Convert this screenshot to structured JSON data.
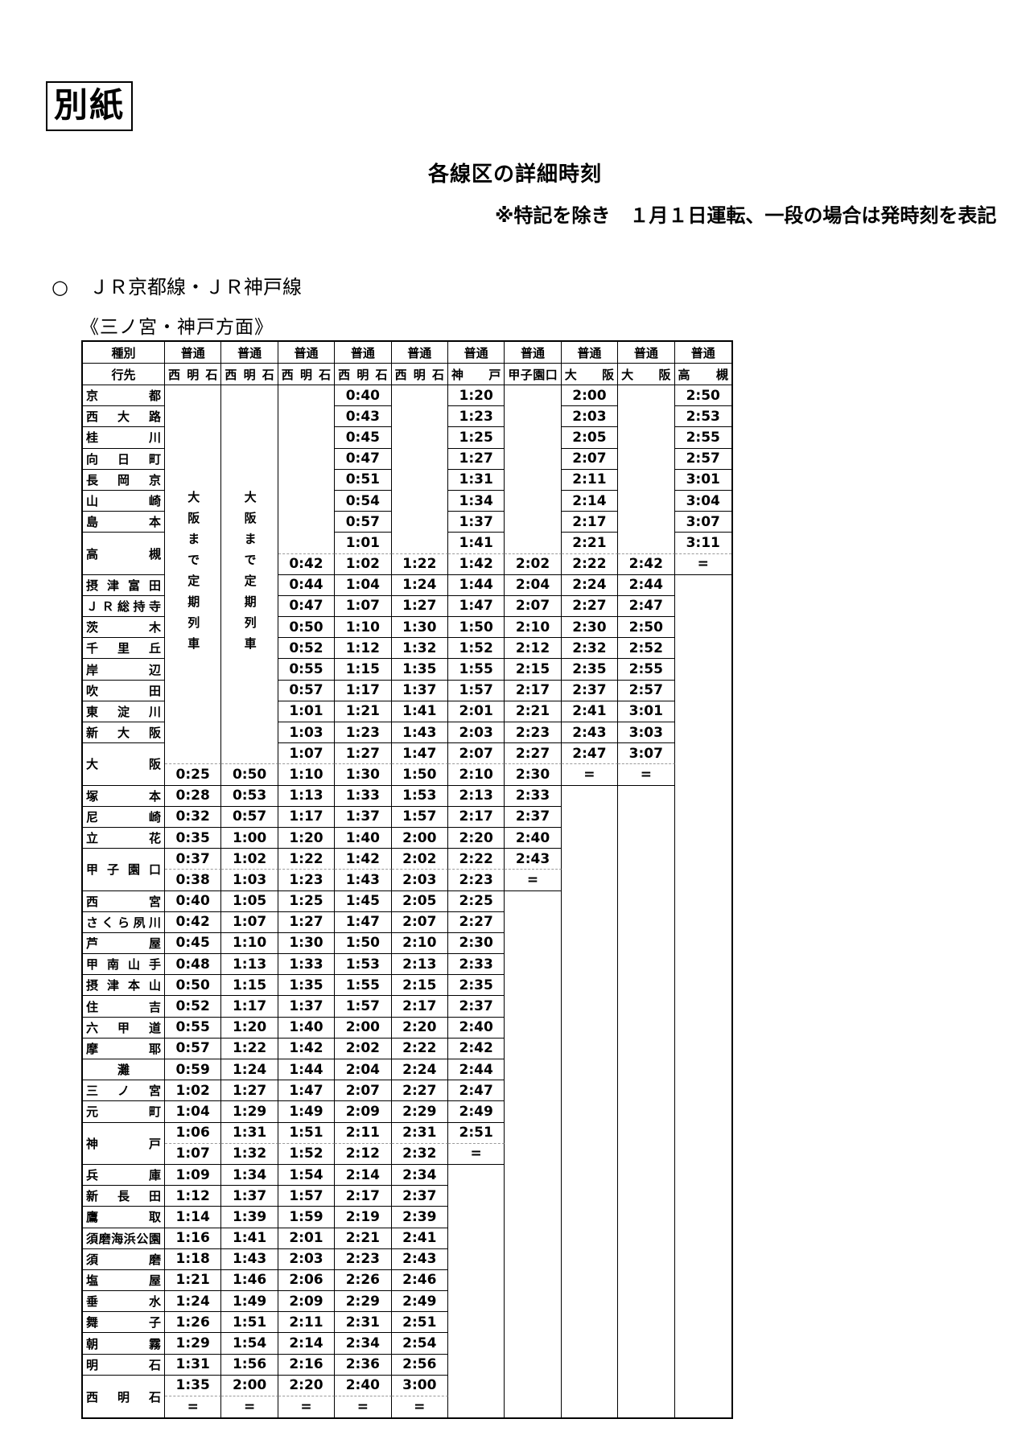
{
  "page": {
    "tag_label": "別紙",
    "title": "各線区の詳細時刻",
    "note": "※特記を除き　１月１日運転、一段の場合は発時刻を表記",
    "section_marker": "○",
    "section_heading": "ＪＲ京都線・ＪＲ神戸線",
    "direction_heading": "《三ノ宮・神戸方面》"
  },
  "timetable": {
    "type_header": "種別",
    "dest_header": "行先",
    "note_vertical": "大阪まで定期列車",
    "stations": [
      {
        "name": "京都",
        "subs": 1
      },
      {
        "name": "西大路",
        "subs": 1
      },
      {
        "name": "桂川",
        "subs": 1
      },
      {
        "name": "向日町",
        "subs": 1
      },
      {
        "name": "長岡京",
        "subs": 1
      },
      {
        "name": "山崎",
        "subs": 1
      },
      {
        "name": "島本",
        "subs": 1
      },
      {
        "name": "高槻",
        "subs": 2
      },
      {
        "name": "摂津富田",
        "subs": 1
      },
      {
        "name": "ＪＲ総持寺",
        "subs": 1
      },
      {
        "name": "茨木",
        "subs": 1
      },
      {
        "name": "千里丘",
        "subs": 1
      },
      {
        "name": "岸辺",
        "subs": 1
      },
      {
        "name": "吹田",
        "subs": 1
      },
      {
        "name": "東淀川",
        "subs": 1
      },
      {
        "name": "新大阪",
        "subs": 1
      },
      {
        "name": "大阪",
        "subs": 2
      },
      {
        "name": "塚本",
        "subs": 1
      },
      {
        "name": "尼崎",
        "subs": 1
      },
      {
        "name": "立花",
        "subs": 1
      },
      {
        "name": "甲子園口",
        "subs": 2
      },
      {
        "name": "西宮",
        "subs": 1
      },
      {
        "name": "さくら夙川",
        "subs": 1
      },
      {
        "name": "芦屋",
        "subs": 1
      },
      {
        "name": "甲南山手",
        "subs": 1
      },
      {
        "name": "摂津本山",
        "subs": 1
      },
      {
        "name": "住吉",
        "subs": 1
      },
      {
        "name": "六甲道",
        "subs": 1
      },
      {
        "name": "摩耶",
        "subs": 1
      },
      {
        "name": "灘",
        "subs": 1
      },
      {
        "name": "三ノ宮",
        "subs": 1
      },
      {
        "name": "元町",
        "subs": 1
      },
      {
        "name": "神戸",
        "subs": 2
      },
      {
        "name": "兵庫",
        "subs": 1
      },
      {
        "name": "新長田",
        "subs": 1
      },
      {
        "name": "鷹取",
        "subs": 1
      },
      {
        "name": "須磨海浜公園",
        "subs": 1
      },
      {
        "name": "須磨",
        "subs": 1
      },
      {
        "name": "塩屋",
        "subs": 1
      },
      {
        "name": "垂水",
        "subs": 1
      },
      {
        "name": "舞子",
        "subs": 1
      },
      {
        "name": "朝霧",
        "subs": 1
      },
      {
        "name": "明石",
        "subs": 1
      },
      {
        "name": "西明石",
        "subs": 2
      }
    ],
    "columns": [
      {
        "type": "普通",
        "dest": "西明石",
        "note": true,
        "times": [
          null,
          null,
          null,
          null,
          null,
          null,
          null,
          null,
          null,
          null,
          null,
          null,
          null,
          null,
          null,
          null,
          null,
          null,
          "0:25",
          "0:28",
          "0:32",
          "0:35",
          "0:37",
          "0:38",
          "0:40",
          "0:42",
          "0:45",
          "0:48",
          "0:50",
          "0:52",
          "0:55",
          "0:57",
          "0:59",
          "1:02",
          "1:04",
          "1:06",
          "1:07",
          "1:09",
          "1:12",
          "1:14",
          "1:16",
          "1:18",
          "1:21",
          "1:24",
          "1:26",
          "1:29",
          "1:31",
          "1:35",
          "="
        ]
      },
      {
        "type": "普通",
        "dest": "西明石",
        "note": true,
        "times": [
          null,
          null,
          null,
          null,
          null,
          null,
          null,
          null,
          null,
          null,
          null,
          null,
          null,
          null,
          null,
          null,
          null,
          null,
          "0:50",
          "0:53",
          "0:57",
          "1:00",
          "1:02",
          "1:03",
          "1:05",
          "1:07",
          "1:10",
          "1:13",
          "1:15",
          "1:17",
          "1:20",
          "1:22",
          "1:24",
          "1:27",
          "1:29",
          "1:31",
          "1:32",
          "1:34",
          "1:37",
          "1:39",
          "1:41",
          "1:43",
          "1:46",
          "1:49",
          "1:51",
          "1:54",
          "1:56",
          "2:00",
          "="
        ]
      },
      {
        "type": "普通",
        "dest": "西明石",
        "note": false,
        "times": [
          null,
          null,
          null,
          null,
          null,
          null,
          null,
          null,
          "0:42",
          "0:44",
          "0:47",
          "0:50",
          "0:52",
          "0:55",
          "0:57",
          "1:01",
          "1:03",
          "1:07",
          "1:10",
          "1:13",
          "1:17",
          "1:20",
          "1:22",
          "1:23",
          "1:25",
          "1:27",
          "1:30",
          "1:33",
          "1:35",
          "1:37",
          "1:40",
          "1:42",
          "1:44",
          "1:47",
          "1:49",
          "1:51",
          "1:52",
          "1:54",
          "1:57",
          "1:59",
          "2:01",
          "2:03",
          "2:06",
          "2:09",
          "2:11",
          "2:14",
          "2:16",
          "2:20",
          "="
        ]
      },
      {
        "type": "普通",
        "dest": "西明石",
        "note": false,
        "times": [
          "0:40",
          "0:43",
          "0:45",
          "0:47",
          "0:51",
          "0:54",
          "0:57",
          "1:01",
          "1:02",
          "1:04",
          "1:07",
          "1:10",
          "1:12",
          "1:15",
          "1:17",
          "1:21",
          "1:23",
          "1:27",
          "1:30",
          "1:33",
          "1:37",
          "1:40",
          "1:42",
          "1:43",
          "1:45",
          "1:47",
          "1:50",
          "1:53",
          "1:55",
          "1:57",
          "2:00",
          "2:02",
          "2:04",
          "2:07",
          "2:09",
          "2:11",
          "2:12",
          "2:14",
          "2:17",
          "2:19",
          "2:21",
          "2:23",
          "2:26",
          "2:29",
          "2:31",
          "2:34",
          "2:36",
          "2:40",
          "="
        ]
      },
      {
        "type": "普通",
        "dest": "西明石",
        "note": false,
        "times": [
          null,
          null,
          null,
          null,
          null,
          null,
          null,
          null,
          "1:22",
          "1:24",
          "1:27",
          "1:30",
          "1:32",
          "1:35",
          "1:37",
          "1:41",
          "1:43",
          "1:47",
          "1:50",
          "1:53",
          "1:57",
          "2:00",
          "2:02",
          "2:03",
          "2:05",
          "2:07",
          "2:10",
          "2:13",
          "2:15",
          "2:17",
          "2:20",
          "2:22",
          "2:24",
          "2:27",
          "2:29",
          "2:31",
          "2:32",
          "2:34",
          "2:37",
          "2:39",
          "2:41",
          "2:43",
          "2:46",
          "2:49",
          "2:51",
          "2:54",
          "2:56",
          "3:00",
          "="
        ]
      },
      {
        "type": "普通",
        "dest": "神戸",
        "note": false,
        "times": [
          "1:20",
          "1:23",
          "1:25",
          "1:27",
          "1:31",
          "1:34",
          "1:37",
          "1:41",
          "1:42",
          "1:44",
          "1:47",
          "1:50",
          "1:52",
          "1:55",
          "1:57",
          "2:01",
          "2:03",
          "2:07",
          "2:10",
          "2:13",
          "2:17",
          "2:20",
          "2:22",
          "2:23",
          "2:25",
          "2:27",
          "2:30",
          "2:33",
          "2:35",
          "2:37",
          "2:40",
          "2:42",
          "2:44",
          "2:47",
          "2:49",
          "2:51",
          "=",
          null,
          null,
          null,
          null,
          null,
          null,
          null,
          null,
          null,
          null,
          null,
          null
        ]
      },
      {
        "type": "普通",
        "dest": "甲子園口",
        "note": false,
        "times": [
          null,
          null,
          null,
          null,
          null,
          null,
          null,
          null,
          "2:02",
          "2:04",
          "2:07",
          "2:10",
          "2:12",
          "2:15",
          "2:17",
          "2:21",
          "2:23",
          "2:27",
          "2:30",
          "2:33",
          "2:37",
          "2:40",
          "2:43",
          "=",
          null,
          null,
          null,
          null,
          null,
          null,
          null,
          null,
          null,
          null,
          null,
          null,
          null,
          null,
          null,
          null,
          null,
          null,
          null,
          null,
          null,
          null,
          null,
          null,
          null
        ]
      },
      {
        "type": "普通",
        "dest": "大阪",
        "note": false,
        "times": [
          "2:00",
          "2:03",
          "2:05",
          "2:07",
          "2:11",
          "2:14",
          "2:17",
          "2:21",
          "2:22",
          "2:24",
          "2:27",
          "2:30",
          "2:32",
          "2:35",
          "2:37",
          "2:41",
          "2:43",
          "2:47",
          "=",
          null,
          null,
          null,
          null,
          null,
          null,
          null,
          null,
          null,
          null,
          null,
          null,
          null,
          null,
          null,
          null,
          null,
          null,
          null,
          null,
          null,
          null,
          null,
          null,
          null,
          null,
          null,
          null,
          null,
          null,
          null
        ]
      },
      {
        "type": "普通",
        "dest": "大阪",
        "note": false,
        "times": [
          null,
          null,
          null,
          null,
          null,
          null,
          null,
          null,
          "2:42",
          "2:44",
          "2:47",
          "2:50",
          "2:52",
          "2:55",
          "2:57",
          "3:01",
          "3:03",
          "3:07",
          "=",
          null,
          null,
          null,
          null,
          null,
          null,
          null,
          null,
          null,
          null,
          null,
          null,
          null,
          null,
          null,
          null,
          null,
          null,
          null,
          null,
          null,
          null,
          null,
          null,
          null,
          null,
          null,
          null,
          null,
          null
        ]
      },
      {
        "type": "普通",
        "dest": "高槻",
        "note": false,
        "times": [
          "2:50",
          "2:53",
          "2:55",
          "2:57",
          "3:01",
          "3:04",
          "3:07",
          "3:11",
          "=",
          null,
          null,
          null,
          null,
          null,
          null,
          null,
          null,
          null,
          null,
          null,
          null,
          null,
          null,
          null,
          null,
          null,
          null,
          null,
          null,
          null,
          null,
          null,
          null,
          null,
          null,
          null,
          null,
          null,
          null,
          null,
          null,
          null,
          null,
          null,
          null,
          null,
          null,
          null,
          null,
          null
        ]
      }
    ]
  }
}
